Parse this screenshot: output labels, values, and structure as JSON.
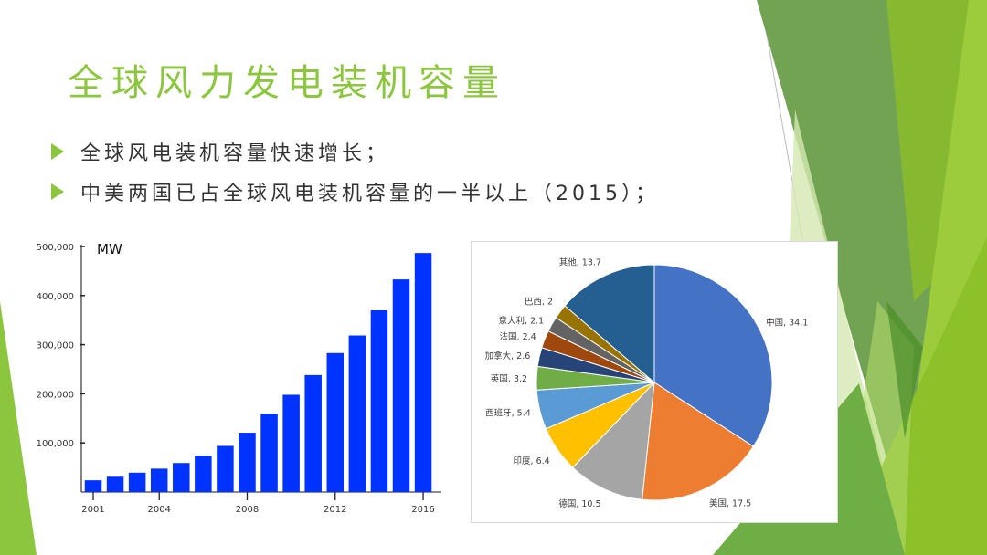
{
  "slide": {
    "title": "全球风力发电装机容量",
    "bullets": [
      "全球风电装机容量快速增长；",
      "中美两国已占全球风电装机容量的一半以上（2015）；"
    ],
    "accent_color": "#8cc63f"
  },
  "chart_data": [
    {
      "type": "bar",
      "unit_label": "MW",
      "categories": [
        "2001",
        "2002",
        "2003",
        "2004",
        "2005",
        "2006",
        "2007",
        "2008",
        "2009",
        "2010",
        "2011",
        "2012",
        "2013",
        "2014",
        "2015",
        "2016"
      ],
      "values": [
        23900,
        31100,
        39400,
        47600,
        59100,
        73900,
        93900,
        120700,
        159100,
        198000,
        238100,
        282900,
        318700,
        369900,
        432900,
        486700
      ],
      "x_tick_labels": [
        "2001",
        "2004",
        "2008",
        "2012",
        "2016"
      ],
      "y_tick_labels": [
        "100,000",
        "200,000",
        "300,000",
        "400,000",
        "500,000"
      ],
      "y_ticks": [
        100000,
        200000,
        300000,
        400000,
        500000
      ],
      "ylim": [
        0,
        500000
      ],
      "bar_color": "#0033ff",
      "grid": false
    },
    {
      "type": "pie",
      "slices": [
        {
          "label": "中国",
          "value": 34.1,
          "text": "中国, 34.1",
          "color": "#4472c4"
        },
        {
          "label": "美国",
          "value": 17.5,
          "text": "美国, 17.5",
          "color": "#ed7d31"
        },
        {
          "label": "德国",
          "value": 10.5,
          "text": "德国, 10.5",
          "color": "#a5a5a5"
        },
        {
          "label": "印度",
          "value": 6.4,
          "text": "印度, 6.4",
          "color": "#ffc000"
        },
        {
          "label": "西班牙",
          "value": 5.4,
          "text": "西班牙, 5.4",
          "color": "#5b9bd5"
        },
        {
          "label": "英国",
          "value": 3.2,
          "text": "英国, 3.2",
          "color": "#70ad47"
        },
        {
          "label": "加拿大",
          "value": 2.6,
          "text": "加拿大, 2.6",
          "color": "#264478"
        },
        {
          "label": "法国",
          "value": 2.4,
          "text": "法国, 2.4",
          "color": "#9e480e"
        },
        {
          "label": "意大利",
          "value": 2.1,
          "text": "意大利, 2.1",
          "color": "#636363"
        },
        {
          "label": "巴西",
          "value": 2,
          "text": "巴西, 2",
          "color": "#997300"
        },
        {
          "label": "其他",
          "value": 13.7,
          "text": "其他, 13.7",
          "color": "#255e91"
        }
      ]
    }
  ]
}
